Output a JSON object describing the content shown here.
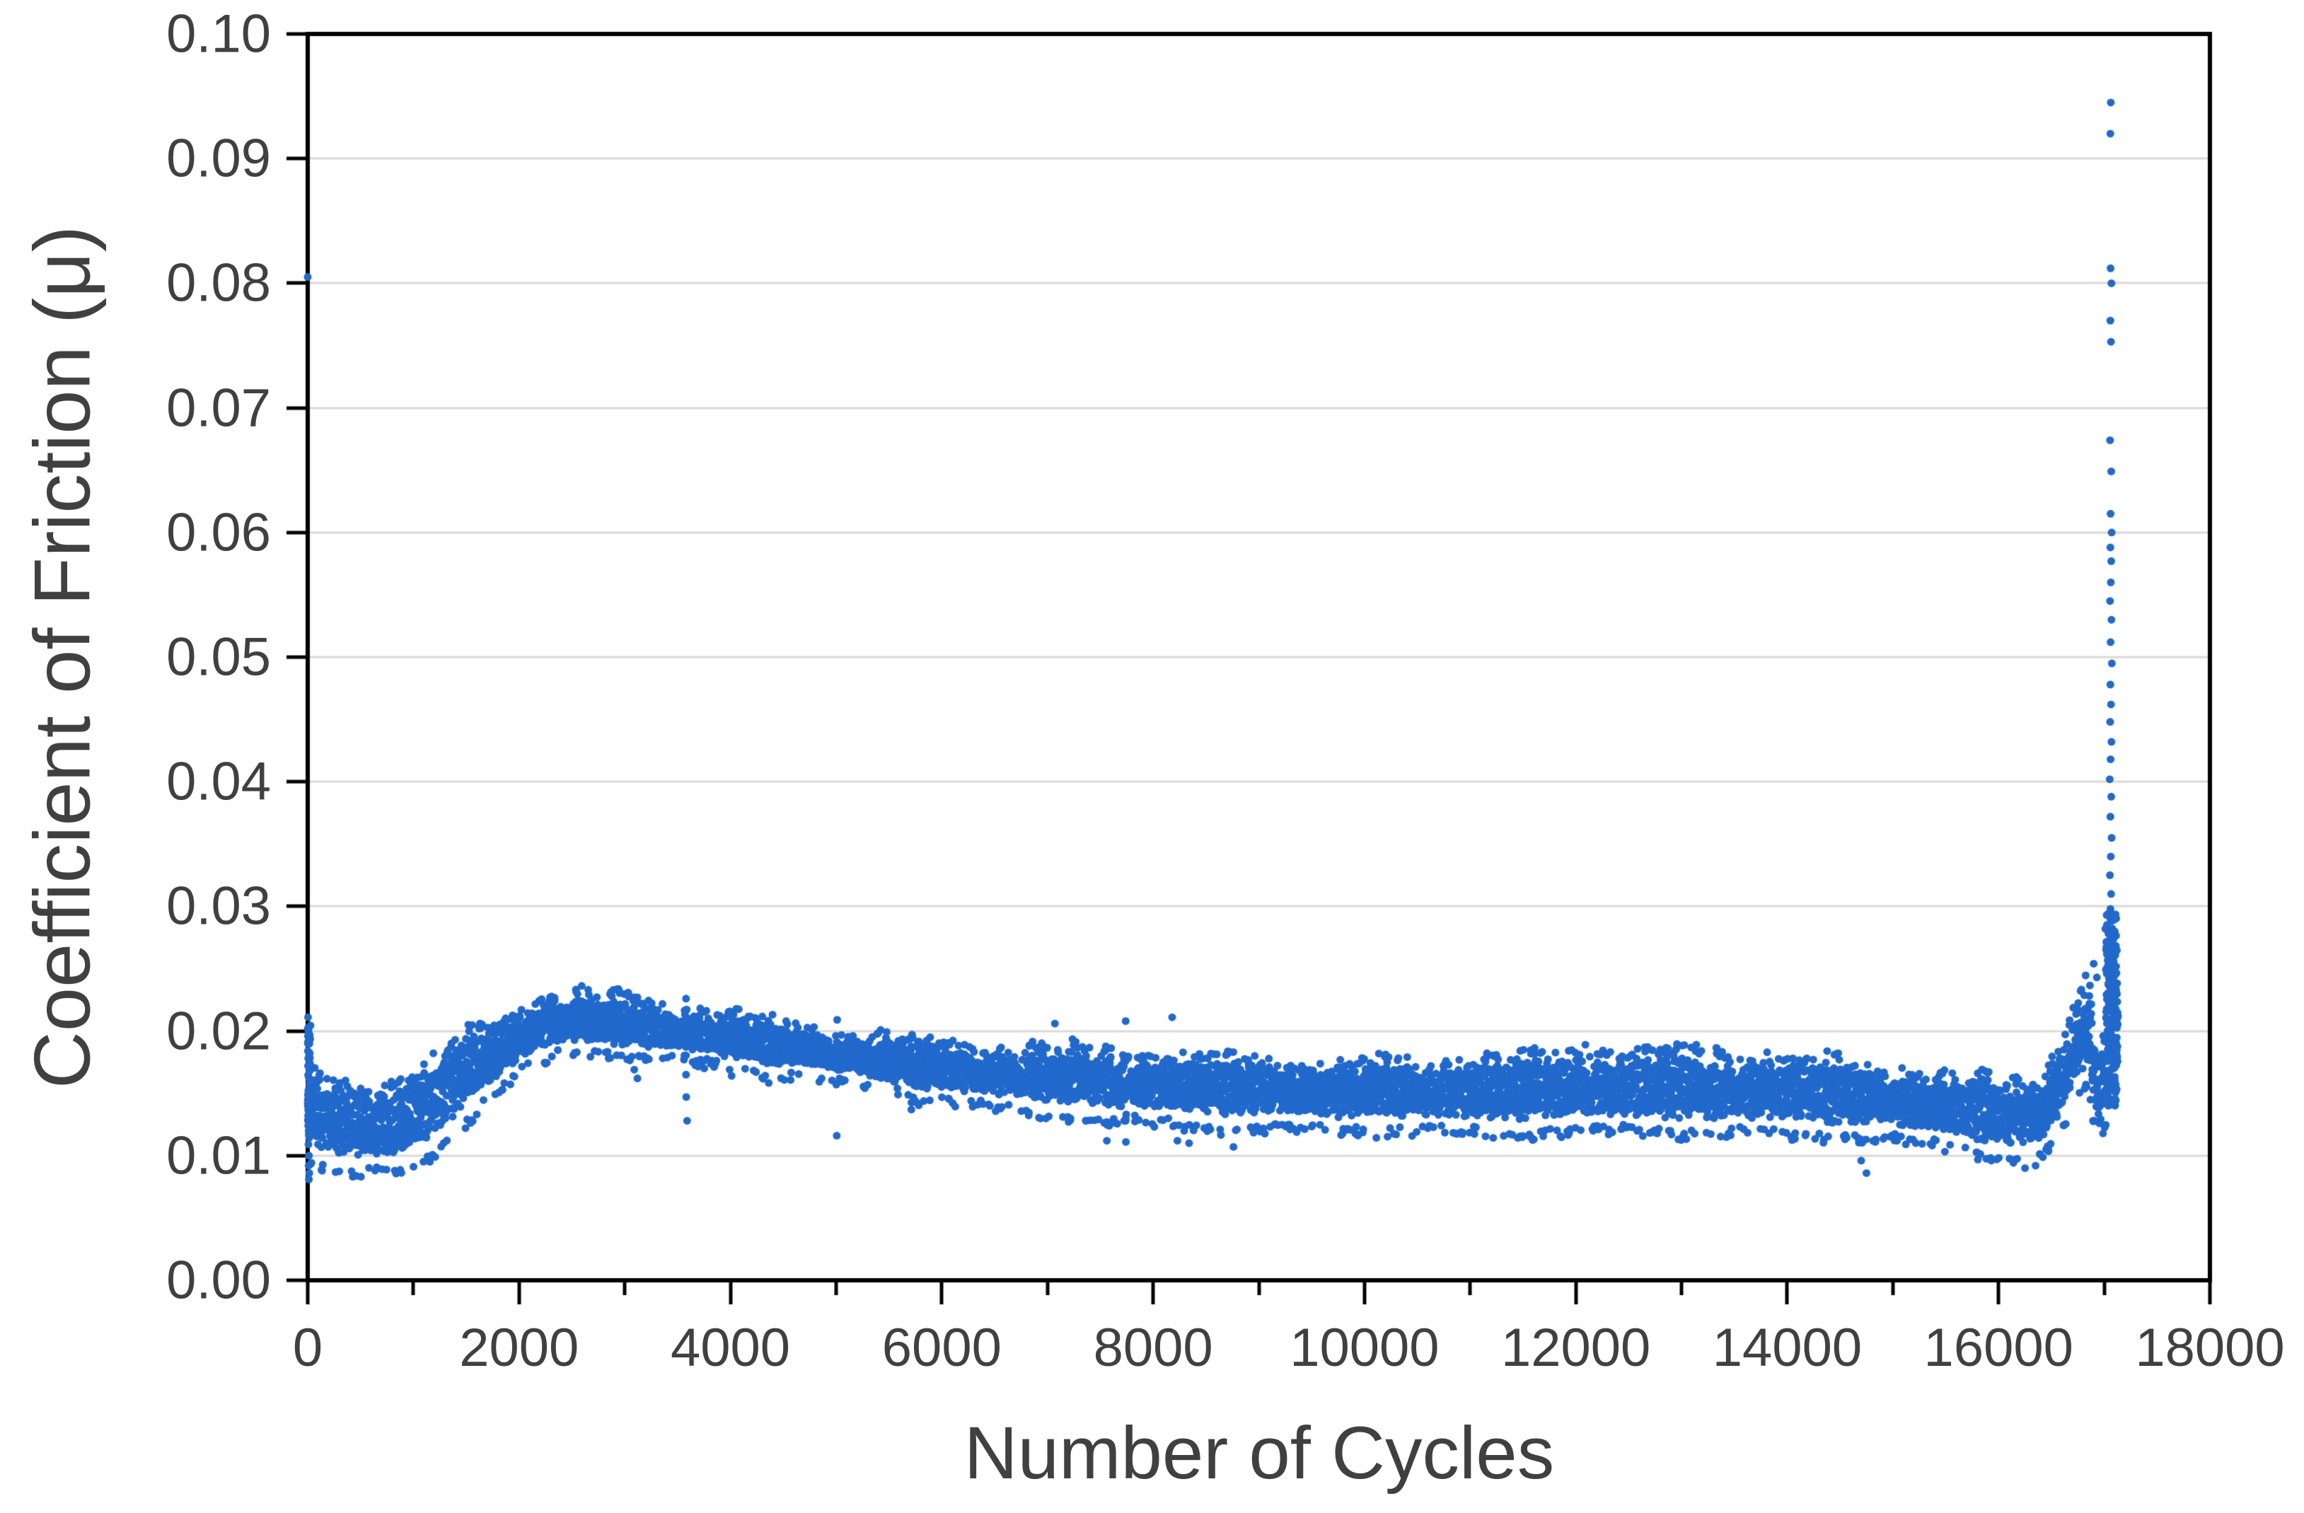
{
  "chart_data": {
    "type": "scatter",
    "title": "",
    "xlabel": "Number of Cycles",
    "ylabel": "Coefficient of Friction (μ)",
    "xlim": [
      0,
      18000
    ],
    "ylim": [
      0.0,
      0.1
    ],
    "x_major_ticks": [
      0,
      2000,
      4000,
      6000,
      8000,
      10000,
      12000,
      14000,
      16000,
      18000
    ],
    "x_tick_labels": [
      "0",
      "2000",
      "4000",
      "6000",
      "8000",
      "10000",
      "12000",
      "14000",
      "16000",
      "18000"
    ],
    "x_minor_ticks": [
      1000,
      3000,
      5000,
      7000,
      9000,
      11000,
      13000,
      15000,
      17000
    ],
    "y_ticks": [
      0.0,
      0.01,
      0.02,
      0.03,
      0.04,
      0.05,
      0.06,
      0.07,
      0.08,
      0.09,
      0.1
    ],
    "y_tick_labels": [
      "0.00",
      "0.01",
      "0.02",
      "0.03",
      "0.04",
      "0.05",
      "0.06",
      "0.07",
      "0.08",
      "0.09",
      "0.10"
    ],
    "grid": "horizontal-only",
    "legend": "none",
    "colors": {
      "marker": "#2269CC",
      "axis": "#000000",
      "grid": "#D9D9D9",
      "text": "#404040",
      "background": "#FFFFFF"
    },
    "marker_radius_px": 5.5,
    "series": [
      {
        "name": "coefficient-of-friction",
        "description": "Dense scatter band of friction coefficient vs cycle count; initial run-in transient at x=0, dip near 500-1000 cycles, hump peaking ~0.022 near 2500 cycles, slow decline to a 0.012-0.0175 band through 16000 cycles, then failure spike up to ~0.095 near 17000 cycles.",
        "band_step_cycles": 2,
        "band_profile": [
          [
            0,
            0.0105,
            0.0165
          ],
          [
            60,
            0.01,
            0.016
          ],
          [
            300,
            0.0092,
            0.0155
          ],
          [
            600,
            0.0088,
            0.015
          ],
          [
            900,
            0.009,
            0.0155
          ],
          [
            1100,
            0.01,
            0.0165
          ],
          [
            1400,
            0.0125,
            0.0185
          ],
          [
            1700,
            0.015,
            0.02
          ],
          [
            2000,
            0.017,
            0.0213
          ],
          [
            2300,
            0.0183,
            0.0222
          ],
          [
            2600,
            0.0188,
            0.0225
          ],
          [
            2900,
            0.0185,
            0.0222
          ],
          [
            3200,
            0.018,
            0.022
          ],
          [
            3600,
            0.0178,
            0.0218
          ],
          [
            4000,
            0.0172,
            0.021
          ],
          [
            4400,
            0.0167,
            0.0205
          ],
          [
            4800,
            0.0163,
            0.02
          ],
          [
            5200,
            0.0158,
            0.0195
          ],
          [
            5600,
            0.0152,
            0.019
          ],
          [
            6000,
            0.0148,
            0.0185
          ],
          [
            6500,
            0.0142,
            0.0182
          ],
          [
            7000,
            0.0138,
            0.018
          ],
          [
            7500,
            0.0133,
            0.0178
          ],
          [
            8000,
            0.013,
            0.0175
          ],
          [
            8500,
            0.0127,
            0.0174
          ],
          [
            9000,
            0.0125,
            0.0174
          ],
          [
            9500,
            0.0123,
            0.0173
          ],
          [
            10000,
            0.0122,
            0.0174
          ],
          [
            10500,
            0.0122,
            0.0174
          ],
          [
            11000,
            0.0121,
            0.0174
          ],
          [
            11500,
            0.0122,
            0.0175
          ],
          [
            12000,
            0.0124,
            0.0177
          ],
          [
            12500,
            0.0124,
            0.0177
          ],
          [
            13000,
            0.0123,
            0.0176
          ],
          [
            13500,
            0.0122,
            0.0175
          ],
          [
            14000,
            0.0121,
            0.0174
          ],
          [
            14500,
            0.0119,
            0.0172
          ],
          [
            15000,
            0.0115,
            0.0168
          ],
          [
            15500,
            0.011,
            0.0163
          ],
          [
            15800,
            0.0105,
            0.016
          ],
          [
            16100,
            0.0098,
            0.0155
          ],
          [
            16400,
            0.01,
            0.016
          ],
          [
            16600,
            0.012,
            0.019
          ],
          [
            16750,
            0.015,
            0.023
          ],
          [
            16850,
            0.016,
            0.0245
          ],
          [
            16900,
            0.013,
            0.02
          ],
          [
            16950,
            0.0115,
            0.0165
          ],
          [
            17000,
            0.0125,
            0.02
          ],
          [
            17040,
            0.014,
            0.029
          ],
          [
            17100,
            0.015,
            0.0293
          ],
          [
            17130,
            0.016,
            0.024
          ]
        ],
        "startup_sparse_points": [
          [
            0,
            0.0805
          ],
          [
            3,
            0.0211
          ],
          [
            1,
            0.0202
          ],
          [
            2,
            0.0196
          ],
          [
            4,
            0.019
          ],
          [
            2,
            0.0184
          ],
          [
            5,
            0.0178
          ],
          [
            3,
            0.0172
          ],
          [
            6,
            0.015
          ],
          [
            4,
            0.0142
          ],
          [
            8,
            0.0133
          ],
          [
            5,
            0.0124
          ],
          [
            10,
            0.0117
          ],
          [
            7,
            0.0109
          ],
          [
            12,
            0.01
          ],
          [
            9,
            0.0092
          ],
          [
            15,
            0.0086
          ],
          [
            11,
            0.0081
          ]
        ],
        "startup_cluster": {
          "x_min": 0,
          "x_max": 28,
          "mu_min": 0.0128,
          "mu_max": 0.0207,
          "count": 34
        },
        "outlier_points": [
          [
            3120,
            0.0227
          ],
          [
            3580,
            0.0226
          ],
          [
            5010,
            0.0209
          ],
          [
            7070,
            0.0206
          ],
          [
            7740,
            0.0208
          ],
          [
            8180,
            0.0211
          ],
          [
            12090,
            0.0189
          ],
          [
            13140,
            0.0189
          ],
          [
            13810,
            0.0183
          ],
          [
            16900,
            0.0254
          ],
          [
            16930,
            0.0243
          ],
          [
            3090,
            0.0169
          ],
          [
            3120,
            0.0162
          ],
          [
            3580,
            0.0165
          ],
          [
            3582,
            0.0147
          ],
          [
            3590,
            0.0128
          ],
          [
            3746,
            0.0176
          ],
          [
            3752,
            0.017
          ],
          [
            5000,
            0.017
          ],
          [
            5002,
            0.0157
          ],
          [
            5006,
            0.0116
          ],
          [
            5580,
            0.0154
          ],
          [
            5586,
            0.0149
          ],
          [
            5712,
            0.0137
          ],
          [
            7560,
            0.0127
          ],
          [
            7562,
            0.0112
          ],
          [
            7742,
            0.0111
          ],
          [
            8230,
            0.0112
          ],
          [
            8340,
            0.011
          ],
          [
            8760,
            0.0107
          ],
          [
            14700,
            0.0096
          ],
          [
            14750,
            0.0086
          ],
          [
            16250,
            0.009
          ],
          [
            16350,
            0.0092
          ]
        ],
        "spike_dense": {
          "x_min": 17010,
          "x_max": 17125,
          "mu_min": 0.014,
          "mu_max": 0.0295,
          "count": 170
        },
        "spike_sparse_points": [
          [
            17062,
            0.0945
          ],
          [
            17058,
            0.092
          ],
          [
            17060,
            0.0812
          ],
          [
            17068,
            0.08
          ],
          [
            17058,
            0.077
          ],
          [
            17064,
            0.0753
          ],
          [
            17055,
            0.0674
          ],
          [
            17066,
            0.0649
          ],
          [
            17060,
            0.0615
          ],
          [
            17070,
            0.06
          ],
          [
            17058,
            0.0588
          ],
          [
            17066,
            0.0577
          ],
          [
            17062,
            0.056
          ],
          [
            17055,
            0.0545
          ],
          [
            17068,
            0.053
          ],
          [
            17060,
            0.0512
          ],
          [
            17072,
            0.0495
          ],
          [
            17058,
            0.0478
          ],
          [
            17064,
            0.0462
          ],
          [
            17056,
            0.0448
          ],
          [
            17068,
            0.0432
          ],
          [
            17060,
            0.0418
          ],
          [
            17052,
            0.0402
          ],
          [
            17066,
            0.0388
          ],
          [
            17058,
            0.0372
          ],
          [
            17070,
            0.0355
          ],
          [
            17062,
            0.034
          ],
          [
            17054,
            0.0325
          ],
          [
            17065,
            0.031
          ],
          [
            17059,
            0.0298
          ]
        ]
      }
    ]
  }
}
